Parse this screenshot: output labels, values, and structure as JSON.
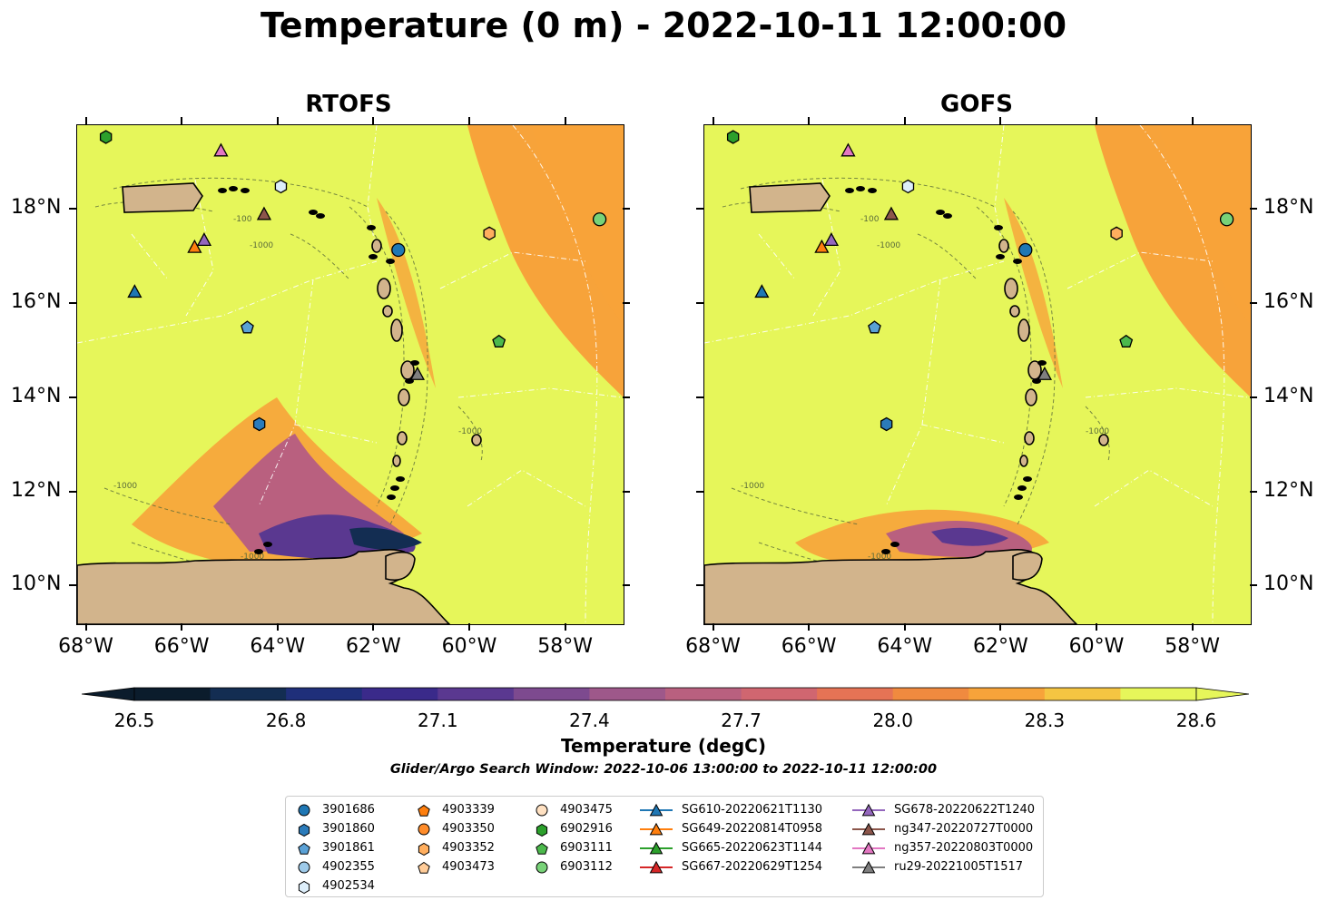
{
  "title": "Temperature (0 m) - 2022-10-11 12:00:00",
  "panels": [
    {
      "id": "rtofs",
      "title": "RTOFS"
    },
    {
      "id": "gofs",
      "title": "GOFS"
    }
  ],
  "axes": {
    "lon_ticks": [
      "68°W",
      "66°W",
      "64°W",
      "62°W",
      "60°W",
      "58°W"
    ],
    "lat_ticks": [
      "18°N",
      "16°N",
      "14°N",
      "12°N",
      "10°N"
    ],
    "lon_range": [
      -68.2,
      -56.8
    ],
    "lat_range": [
      9.2,
      19.8
    ]
  },
  "colorbar": {
    "label": "Temperature (degC)",
    "ticks": [
      "26.5",
      "26.8",
      "27.1",
      "27.4",
      "27.7",
      "28.0",
      "28.3",
      "28.6"
    ],
    "range": [
      26.5,
      28.6
    ],
    "extend": "both"
  },
  "search_window": "Glider/Argo Search Window: 2022-10-06 13:00:00 to 2022-10-11 12:00:00",
  "contour_labels": [
    "-100",
    "-1000"
  ],
  "colors": {
    "land": "#d2b48c",
    "ocean_warm": "#e6f65a",
    "ocean_hot": "#f7a33a",
    "cool": "#3a2a8a"
  },
  "legend": {
    "columns": [
      [
        {
          "label": "3901686",
          "marker": "circle",
          "color": "#1f77b4"
        },
        {
          "label": "3901860",
          "marker": "hexagon",
          "color": "#2b7bba"
        },
        {
          "label": "3901861",
          "marker": "pentagon",
          "color": "#5aa1d6"
        },
        {
          "label": "4902355",
          "marker": "circle",
          "color": "#9ecae9"
        },
        {
          "label": "4902534",
          "marker": "hexagon",
          "color": "#ddeefa"
        }
      ],
      [
        {
          "label": "4903339",
          "marker": "pentagon",
          "color": "#ff7f0e"
        },
        {
          "label": "4903350",
          "marker": "circle",
          "color": "#ff8c2a"
        },
        {
          "label": "4903352",
          "marker": "hexagon",
          "color": "#ffae5e"
        },
        {
          "label": "4903473",
          "marker": "pentagon",
          "color": "#ffcc99"
        }
      ],
      [
        {
          "label": "4903475",
          "marker": "circle",
          "color": "#ffe1c2"
        },
        {
          "label": "6902916",
          "marker": "hexagon",
          "color": "#2ca02c"
        },
        {
          "label": "6903111",
          "marker": "pentagon",
          "color": "#4cb94c"
        },
        {
          "label": "6903112",
          "marker": "circle",
          "color": "#78d278"
        }
      ],
      [
        {
          "label": "SG610-20220621T1130",
          "marker": "triangle",
          "color": "#1f77b4",
          "line": true
        },
        {
          "label": "SG649-20220814T0958",
          "marker": "triangle",
          "color": "#ff7f0e",
          "line": true
        },
        {
          "label": "SG665-20220623T1144",
          "marker": "triangle",
          "color": "#2ca02c",
          "line": true
        },
        {
          "label": "SG667-20220629T1254",
          "marker": "triangle",
          "color": "#d62728",
          "line": true
        }
      ],
      [
        {
          "label": "SG678-20220622T1240",
          "marker": "triangle",
          "color": "#9467bd",
          "line": true
        },
        {
          "label": "ng347-20220727T0000",
          "marker": "triangle",
          "color": "#8c564b",
          "line": true
        },
        {
          "label": "ng357-20220803T0000",
          "marker": "triangle",
          "color": "#e377c2",
          "line": true
        },
        {
          "label": "ru29-20221005T1517",
          "marker": "triangle",
          "color": "#7f7f7f",
          "line": true
        }
      ]
    ]
  },
  "markers": [
    {
      "id": "6902916",
      "lon": -67.6,
      "lat": 19.55,
      "marker": "hexagon",
      "color": "#2ca02c"
    },
    {
      "id": "ng357-20220803T0000",
      "lon": -65.2,
      "lat": 19.25,
      "marker": "triangle",
      "color": "#e377c2"
    },
    {
      "id": "4902534",
      "lon": -63.95,
      "lat": 18.5,
      "marker": "hexagon",
      "color": "#ddeefa"
    },
    {
      "id": "ng347-20220727T0000",
      "lon": -64.3,
      "lat": 17.9,
      "marker": "triangle",
      "color": "#8c564b"
    },
    {
      "id": "SG649-20220814T0958",
      "lon": -65.75,
      "lat": 17.2,
      "marker": "triangle",
      "color": "#ff7f0e"
    },
    {
      "id": "SG678-20220622T1240",
      "lon": -65.55,
      "lat": 17.35,
      "marker": "triangle",
      "color": "#9467bd"
    },
    {
      "id": "SG610-20220621T1130",
      "lon": -67.0,
      "lat": 16.25,
      "marker": "triangle",
      "color": "#1f77b4"
    },
    {
      "id": "3901861",
      "lon": -64.65,
      "lat": 15.5,
      "marker": "pentagon",
      "color": "#5aa1d6"
    },
    {
      "id": "3901860",
      "lon": -64.4,
      "lat": 13.45,
      "marker": "hexagon",
      "color": "#2b7bba"
    },
    {
      "id": "3901686",
      "lon": -61.5,
      "lat": 17.15,
      "marker": "circle",
      "color": "#1f77b4"
    },
    {
      "id": "4903352",
      "lon": -59.6,
      "lat": 17.5,
      "marker": "hexagon",
      "color": "#ffae5e"
    },
    {
      "id": "6903112",
      "lon": -57.3,
      "lat": 17.8,
      "marker": "circle",
      "color": "#78d278"
    },
    {
      "id": "6903111",
      "lon": -59.4,
      "lat": 15.2,
      "marker": "pentagon",
      "color": "#4cb94c"
    },
    {
      "id": "ru29-20221005T1517",
      "lon": -61.1,
      "lat": 14.5,
      "marker": "triangle",
      "color": "#7f7f7f"
    }
  ]
}
